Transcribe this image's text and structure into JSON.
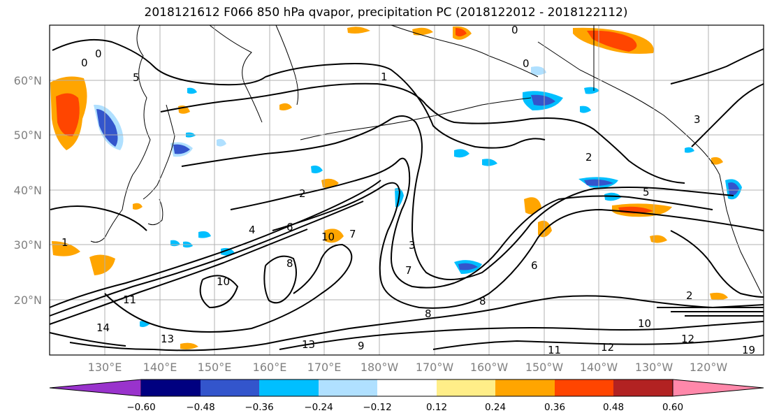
{
  "title": "2018121612 F066 850 hPa qvapor, precipitation PC (2018122012 - 2018122112)",
  "lat_labels": [
    "60°N",
    "50°N",
    "40°N",
    "30°N",
    "20°N"
  ],
  "lon_labels": [
    "130°E",
    "140°E",
    "150°E",
    "160°E",
    "170°E",
    "180°W",
    "170°W",
    "160°W",
    "150°W",
    "140°W",
    "130°W",
    "120°W"
  ],
  "colorbar": {
    "colors": [
      "#9933cc",
      "#000080",
      "#3355cc",
      "#00bfff",
      "#b0e0ff",
      "#ffffff",
      "#ffee88",
      "#ffa500",
      "#ff4500",
      "#b22222",
      "#ff88aa"
    ],
    "tick_labels": [
      "−0.60",
      "−0.48",
      "−0.36",
      "−0.24",
      "−0.12",
      "0.12",
      "0.24",
      "0.36",
      "0.48",
      "0.60"
    ]
  },
  "contour_labels": [
    "0",
    "0",
    "0",
    "0",
    "1",
    "1",
    "2",
    "2",
    "2",
    "3",
    "3",
    "4",
    "5",
    "5",
    "6",
    "6",
    "7",
    "7",
    "8",
    "8",
    "8",
    "9",
    "10",
    "10",
    "10",
    "11",
    "11",
    "12",
    "12",
    "13",
    "13",
    "14",
    "19"
  ]
}
